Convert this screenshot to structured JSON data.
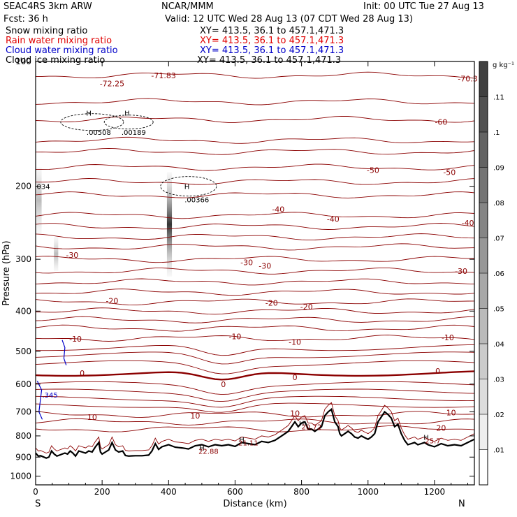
{
  "header": {
    "model": "SEAC4RS  3km ARW",
    "center": "NCAR/MMM",
    "init": "Init: 00 UTC Tue 27 Aug 13",
    "fcst": "Fcst:   36 h",
    "valid": "Valid: 12 UTC Wed 28 Aug 13 (07 CDT Wed 28 Aug 13)",
    "fields": [
      {
        "name": "Snow mixing ratio",
        "xy": "XY= 413.5, 36.1 to 457.1,471.3",
        "color": "#000000"
      },
      {
        "name": "Rain water mixing ratio",
        "xy": "XY= 413.5, 36.1 to 457.1,471.3",
        "color": "#e00000"
      },
      {
        "name": "Cloud water mixing ratio",
        "xy": "XY= 413.5, 36.1 to 457.1,471.3",
        "color": "#0000c8"
      },
      {
        "name": "Cloud ice mixing ratio",
        "xy": "XY= 413.5, 36.1 to 457.1,471.3",
        "color": "#000000"
      }
    ]
  },
  "chart_data": {
    "type": "cross-section",
    "xlabel": "Distance (km)",
    "ylabel": "Pressure (hPa)",
    "xlim": [
      0,
      1320
    ],
    "ylim": [
      100,
      1050
    ],
    "y_scale": "log",
    "x_ticks": [
      0,
      200,
      400,
      600,
      800,
      1000,
      1200
    ],
    "y_ticks": [
      100,
      200,
      300,
      400,
      500,
      600,
      700,
      800,
      900,
      1000
    ],
    "end_labels": {
      "left": "S",
      "right": "N"
    },
    "colorbar": {
      "units": "g kg⁻¹",
      "levels": [
        ".01",
        ".02",
        ".03",
        ".04",
        ".05",
        ".06",
        ".07",
        ".08",
        ".09",
        ".1",
        ".11"
      ],
      "top_color": "#404040",
      "bottom_color": "#ffffff"
    },
    "temperature_contours": {
      "levels": [
        -70,
        -60,
        -50,
        -40,
        -30,
        -20,
        -10,
        0,
        10,
        20
      ],
      "color": "#8b0000",
      "zero_line_bold": true,
      "labels": [
        {
          "text": "-70.3",
          "x": 1300,
          "p": 110
        },
        {
          "text": "-72.25",
          "x": 230,
          "p": 113
        },
        {
          "text": "-71.83",
          "x": 385,
          "p": 108
        },
        {
          "text": "-60",
          "x": 1220,
          "p": 140
        },
        {
          "text": "-50",
          "x": 1245,
          "p": 185
        },
        {
          "text": "-50",
          "x": 1015,
          "p": 183
        },
        {
          "text": "-40",
          "x": 1300,
          "p": 245
        },
        {
          "text": "-40",
          "x": 895,
          "p": 240
        },
        {
          "text": "-40",
          "x": 730,
          "p": 227
        },
        {
          "text": "-30",
          "x": 1280,
          "p": 320
        },
        {
          "text": "-30",
          "x": 635,
          "p": 305
        },
        {
          "text": "-30",
          "x": 690,
          "p": 311
        },
        {
          "text": "-30",
          "x": 110,
          "p": 293
        },
        {
          "text": "-20",
          "x": 230,
          "p": 378
        },
        {
          "text": "-20",
          "x": 710,
          "p": 382
        },
        {
          "text": "-20",
          "x": 815,
          "p": 390
        },
        {
          "text": "-10",
          "x": 120,
          "p": 467
        },
        {
          "text": "-10",
          "x": 600,
          "p": 460
        },
        {
          "text": "-10",
          "x": 780,
          "p": 475
        },
        {
          "text": "-10",
          "x": 1240,
          "p": 463
        },
        {
          "text": "0",
          "x": 140,
          "p": 564
        },
        {
          "text": "0",
          "x": 565,
          "p": 600
        },
        {
          "text": "0",
          "x": 780,
          "p": 578
        },
        {
          "text": "0",
          "x": 1210,
          "p": 558
        },
        {
          "text": "10",
          "x": 170,
          "p": 720
        },
        {
          "text": "10",
          "x": 480,
          "p": 715
        },
        {
          "text": "10",
          "x": 780,
          "p": 705
        },
        {
          "text": "10",
          "x": 1250,
          "p": 703
        },
        {
          "text": "20",
          "x": 1220,
          "p": 765
        }
      ]
    },
    "max_labels": [
      {
        "text": "H",
        "x": 160,
        "p": 133
      },
      {
        "text": ".00508",
        "x": 190,
        "p": 148
      },
      {
        "text": "H",
        "x": 275,
        "p": 133
      },
      {
        "text": ".00189",
        "x": 295,
        "p": 148
      },
      {
        "text": "H",
        "x": 455,
        "p": 200
      },
      {
        "text": ".00366",
        "x": 485,
        "p": 215
      },
      {
        "text": ".034",
        "x": 20,
        "p": 200
      },
      {
        "text": "H",
        "x": 500,
        "p": 855
      },
      {
        "text": "22.88",
        "x": 520,
        "p": 870
      },
      {
        "text": "H",
        "x": 620,
        "p": 815
      },
      {
        "text": "21.11",
        "x": 640,
        "p": 830
      },
      {
        "text": "H",
        "x": 800,
        "p": 745
      },
      {
        "text": "20.72",
        "x": 830,
        "p": 760
      },
      {
        "text": "H",
        "x": 1175,
        "p": 805
      },
      {
        "text": "25.7",
        "x": 1195,
        "p": 820
      }
    ],
    "cloud_water_label": {
      "text": ".345",
      "x": 20,
      "p": 647
    },
    "terrain": {
      "x": [
        0,
        8,
        15,
        25,
        32,
        40,
        48,
        56,
        64,
        72,
        80,
        88,
        96,
        104,
        112,
        120,
        130,
        140,
        150,
        160,
        170,
        180,
        190,
        195,
        200,
        210,
        220,
        230,
        240,
        250,
        262,
        270,
        280,
        290,
        300,
        320,
        340,
        350,
        360,
        370,
        380,
        400,
        420,
        440,
        460,
        480,
        500,
        520,
        540,
        560,
        580,
        600,
        620,
        640,
        660,
        680,
        700,
        720,
        740,
        760,
        780,
        790,
        800,
        810,
        820,
        830,
        840,
        850,
        860,
        870,
        880,
        890,
        900,
        910,
        915,
        920,
        930,
        940,
        950,
        960,
        970,
        980,
        990,
        1000,
        1010,
        1020,
        1030,
        1040,
        1050,
        1060,
        1070,
        1080,
        1090,
        1100,
        1110,
        1120,
        1130,
        1140,
        1150,
        1160,
        1170,
        1180,
        1200,
        1220,
        1240,
        1260,
        1280,
        1300,
        1320
      ],
      "p": [
        880,
        895,
        893,
        900,
        905,
        900,
        870,
        885,
        895,
        890,
        885,
        880,
        885,
        870,
        880,
        895,
        870,
        875,
        880,
        870,
        875,
        850,
        830,
        875,
        885,
        875,
        865,
        830,
        865,
        875,
        870,
        892,
        895,
        894,
        893,
        893,
        890,
        870,
        835,
        862,
        850,
        840,
        852,
        855,
        860,
        845,
        840,
        850,
        840,
        845,
        840,
        848,
        830,
        835,
        840,
        825,
        830,
        820,
        800,
        780,
        740,
        760,
        745,
        740,
        770,
        770,
        780,
        770,
        760,
        715,
        700,
        690,
        740,
        760,
        790,
        800,
        790,
        780,
        790,
        805,
        810,
        800,
        808,
        815,
        805,
        790,
        740,
        720,
        700,
        710,
        725,
        760,
        750,
        790,
        820,
        840,
        835,
        830,
        840,
        835,
        830,
        840,
        850,
        835,
        845,
        840,
        845,
        830,
        815
      ]
    }
  }
}
